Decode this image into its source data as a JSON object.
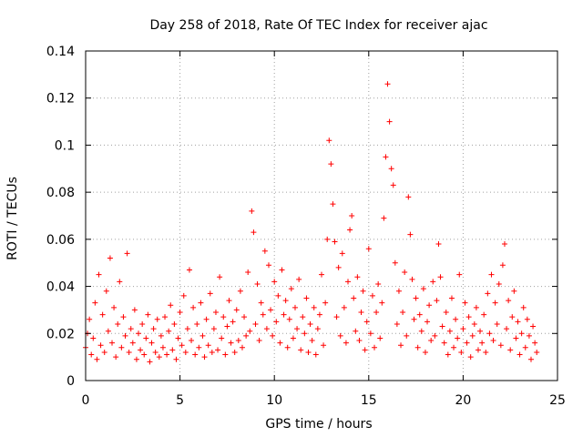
{
  "chart_data": {
    "type": "scatter",
    "title": "Day 258 of 2018, Rate Of TEC Index for receiver ajac",
    "xlabel": "GPS time / hours",
    "ylabel": "ROTI / TECUs",
    "xlim": [
      0,
      25
    ],
    "ylim": [
      0,
      0.14
    ],
    "xticks": [
      0,
      5,
      10,
      15,
      20,
      25
    ],
    "xtick_labels": [
      "0",
      "5",
      "10",
      "15",
      "20",
      "25"
    ],
    "yticks": [
      0,
      0.02,
      0.04,
      0.06,
      0.08,
      0.1,
      0.12,
      0.14
    ],
    "ytick_labels": [
      "0",
      "0.02",
      "0.04",
      "0.06",
      "0.08",
      "0.1",
      "0.12",
      "0.14"
    ],
    "grid": true,
    "marker": "+",
    "color": "#ff0000",
    "points": [
      [
        0.0,
        0.014
      ],
      [
        0.1,
        0.02
      ],
      [
        0.2,
        0.026
      ],
      [
        0.3,
        0.011
      ],
      [
        0.4,
        0.018
      ],
      [
        0.5,
        0.033
      ],
      [
        0.6,
        0.009
      ],
      [
        0.7,
        0.045
      ],
      [
        0.8,
        0.015
      ],
      [
        0.9,
        0.028
      ],
      [
        1.0,
        0.012
      ],
      [
        1.1,
        0.038
      ],
      [
        1.2,
        0.021
      ],
      [
        1.3,
        0.052
      ],
      [
        1.4,
        0.016
      ],
      [
        1.5,
        0.031
      ],
      [
        1.6,
        0.01
      ],
      [
        1.7,
        0.024
      ],
      [
        1.8,
        0.042
      ],
      [
        1.9,
        0.014
      ],
      [
        2.0,
        0.027
      ],
      [
        2.1,
        0.019
      ],
      [
        2.2,
        0.054
      ],
      [
        2.3,
        0.012
      ],
      [
        2.4,
        0.022
      ],
      [
        2.5,
        0.016
      ],
      [
        2.6,
        0.03
      ],
      [
        2.7,
        0.009
      ],
      [
        2.8,
        0.02
      ],
      [
        2.9,
        0.013
      ],
      [
        3.0,
        0.024
      ],
      [
        3.1,
        0.011
      ],
      [
        3.2,
        0.018
      ],
      [
        3.3,
        0.028
      ],
      [
        3.4,
        0.008
      ],
      [
        3.5,
        0.016
      ],
      [
        3.6,
        0.022
      ],
      [
        3.7,
        0.012
      ],
      [
        3.8,
        0.026
      ],
      [
        3.9,
        0.01
      ],
      [
        4.0,
        0.019
      ],
      [
        4.1,
        0.014
      ],
      [
        4.2,
        0.027
      ],
      [
        4.3,
        0.011
      ],
      [
        4.4,
        0.021
      ],
      [
        4.5,
        0.032
      ],
      [
        4.6,
        0.013
      ],
      [
        4.7,
        0.024
      ],
      [
        4.8,
        0.009
      ],
      [
        4.9,
        0.018
      ],
      [
        5.0,
        0.029
      ],
      [
        5.1,
        0.015
      ],
      [
        5.2,
        0.036
      ],
      [
        5.3,
        0.012
      ],
      [
        5.4,
        0.022
      ],
      [
        5.5,
        0.047
      ],
      [
        5.6,
        0.017
      ],
      [
        5.7,
        0.031
      ],
      [
        5.8,
        0.011
      ],
      [
        5.9,
        0.024
      ],
      [
        6.0,
        0.014
      ],
      [
        6.1,
        0.033
      ],
      [
        6.2,
        0.019
      ],
      [
        6.3,
        0.01
      ],
      [
        6.4,
        0.026
      ],
      [
        6.5,
        0.015
      ],
      [
        6.6,
        0.037
      ],
      [
        6.7,
        0.012
      ],
      [
        6.8,
        0.022
      ],
      [
        6.9,
        0.029
      ],
      [
        7.0,
        0.013
      ],
      [
        7.1,
        0.044
      ],
      [
        7.2,
        0.018
      ],
      [
        7.3,
        0.027
      ],
      [
        7.4,
        0.011
      ],
      [
        7.5,
        0.023
      ],
      [
        7.6,
        0.034
      ],
      [
        7.7,
        0.016
      ],
      [
        7.8,
        0.025
      ],
      [
        7.9,
        0.012
      ],
      [
        8.0,
        0.03
      ],
      [
        8.1,
        0.017
      ],
      [
        8.2,
        0.038
      ],
      [
        8.3,
        0.014
      ],
      [
        8.4,
        0.027
      ],
      [
        8.5,
        0.019
      ],
      [
        8.6,
        0.046
      ],
      [
        8.7,
        0.021
      ],
      [
        8.8,
        0.072
      ],
      [
        8.9,
        0.063
      ],
      [
        9.0,
        0.024
      ],
      [
        9.1,
        0.041
      ],
      [
        9.2,
        0.017
      ],
      [
        9.3,
        0.033
      ],
      [
        9.4,
        0.028
      ],
      [
        9.5,
        0.055
      ],
      [
        9.6,
        0.022
      ],
      [
        9.7,
        0.049
      ],
      [
        9.8,
        0.03
      ],
      [
        9.9,
        0.019
      ],
      [
        10.0,
        0.042
      ],
      [
        10.1,
        0.025
      ],
      [
        10.2,
        0.036
      ],
      [
        10.3,
        0.016
      ],
      [
        10.4,
        0.047
      ],
      [
        10.5,
        0.028
      ],
      [
        10.6,
        0.034
      ],
      [
        10.7,
        0.014
      ],
      [
        10.8,
        0.026
      ],
      [
        10.9,
        0.039
      ],
      [
        11.0,
        0.018
      ],
      [
        11.1,
        0.031
      ],
      [
        11.2,
        0.022
      ],
      [
        11.3,
        0.043
      ],
      [
        11.4,
        0.013
      ],
      [
        11.5,
        0.027
      ],
      [
        11.6,
        0.02
      ],
      [
        11.7,
        0.035
      ],
      [
        11.8,
        0.012
      ],
      [
        11.9,
        0.024
      ],
      [
        12.0,
        0.017
      ],
      [
        12.1,
        0.031
      ],
      [
        12.2,
        0.011
      ],
      [
        12.3,
        0.022
      ],
      [
        12.4,
        0.028
      ],
      [
        12.5,
        0.045
      ],
      [
        12.6,
        0.015
      ],
      [
        12.7,
        0.033
      ],
      [
        12.8,
        0.06
      ],
      [
        12.9,
        0.102
      ],
      [
        13.0,
        0.092
      ],
      [
        13.1,
        0.075
      ],
      [
        13.2,
        0.059
      ],
      [
        13.3,
        0.027
      ],
      [
        13.4,
        0.048
      ],
      [
        13.5,
        0.019
      ],
      [
        13.6,
        0.054
      ],
      [
        13.7,
        0.031
      ],
      [
        13.8,
        0.016
      ],
      [
        13.9,
        0.042
      ],
      [
        14.0,
        0.064
      ],
      [
        14.1,
        0.07
      ],
      [
        14.2,
        0.035
      ],
      [
        14.3,
        0.021
      ],
      [
        14.4,
        0.044
      ],
      [
        14.5,
        0.017
      ],
      [
        14.6,
        0.029
      ],
      [
        14.7,
        0.038
      ],
      [
        14.8,
        0.013
      ],
      [
        14.9,
        0.025
      ],
      [
        15.0,
        0.056
      ],
      [
        15.1,
        0.02
      ],
      [
        15.2,
        0.036
      ],
      [
        15.3,
        0.014
      ],
      [
        15.4,
        0.029
      ],
      [
        15.5,
        0.041
      ],
      [
        15.6,
        0.018
      ],
      [
        15.7,
        0.033
      ],
      [
        15.8,
        0.069
      ],
      [
        15.9,
        0.095
      ],
      [
        16.0,
        0.126
      ],
      [
        16.1,
        0.11
      ],
      [
        16.2,
        0.09
      ],
      [
        16.3,
        0.083
      ],
      [
        16.4,
        0.05
      ],
      [
        16.5,
        0.024
      ],
      [
        16.6,
        0.038
      ],
      [
        16.7,
        0.015
      ],
      [
        16.8,
        0.029
      ],
      [
        16.9,
        0.046
      ],
      [
        17.0,
        0.019
      ],
      [
        17.1,
        0.078
      ],
      [
        17.2,
        0.062
      ],
      [
        17.3,
        0.043
      ],
      [
        17.4,
        0.026
      ],
      [
        17.5,
        0.035
      ],
      [
        17.6,
        0.014
      ],
      [
        17.7,
        0.028
      ],
      [
        17.8,
        0.021
      ],
      [
        17.9,
        0.039
      ],
      [
        18.0,
        0.012
      ],
      [
        18.1,
        0.025
      ],
      [
        18.2,
        0.032
      ],
      [
        18.3,
        0.017
      ],
      [
        18.4,
        0.042
      ],
      [
        18.5,
        0.019
      ],
      [
        18.6,
        0.034
      ],
      [
        18.7,
        0.058
      ],
      [
        18.8,
        0.044
      ],
      [
        18.9,
        0.023
      ],
      [
        19.0,
        0.016
      ],
      [
        19.1,
        0.029
      ],
      [
        19.2,
        0.011
      ],
      [
        19.3,
        0.021
      ],
      [
        19.4,
        0.035
      ],
      [
        19.5,
        0.014
      ],
      [
        19.6,
        0.026
      ],
      [
        19.7,
        0.018
      ],
      [
        19.8,
        0.045
      ],
      [
        19.9,
        0.012
      ],
      [
        20.0,
        0.022
      ],
      [
        20.1,
        0.033
      ],
      [
        20.2,
        0.016
      ],
      [
        20.3,
        0.027
      ],
      [
        20.4,
        0.01
      ],
      [
        20.5,
        0.019
      ],
      [
        20.6,
        0.024
      ],
      [
        20.7,
        0.031
      ],
      [
        20.8,
        0.013
      ],
      [
        20.9,
        0.021
      ],
      [
        21.0,
        0.016
      ],
      [
        21.1,
        0.028
      ],
      [
        21.2,
        0.012
      ],
      [
        21.3,
        0.037
      ],
      [
        21.4,
        0.02
      ],
      [
        21.5,
        0.045
      ],
      [
        21.6,
        0.017
      ],
      [
        21.7,
        0.033
      ],
      [
        21.8,
        0.024
      ],
      [
        21.9,
        0.041
      ],
      [
        22.0,
        0.015
      ],
      [
        22.1,
        0.049
      ],
      [
        22.2,
        0.058
      ],
      [
        22.3,
        0.022
      ],
      [
        22.4,
        0.034
      ],
      [
        22.5,
        0.013
      ],
      [
        22.6,
        0.027
      ],
      [
        22.7,
        0.038
      ],
      [
        22.8,
        0.018
      ],
      [
        22.9,
        0.025
      ],
      [
        23.0,
        0.011
      ],
      [
        23.1,
        0.02
      ],
      [
        23.2,
        0.031
      ],
      [
        23.3,
        0.014
      ],
      [
        23.4,
        0.026
      ],
      [
        23.5,
        0.019
      ],
      [
        23.6,
        0.009
      ],
      [
        23.7,
        0.023
      ],
      [
        23.8,
        0.016
      ],
      [
        23.9,
        0.012
      ]
    ]
  }
}
